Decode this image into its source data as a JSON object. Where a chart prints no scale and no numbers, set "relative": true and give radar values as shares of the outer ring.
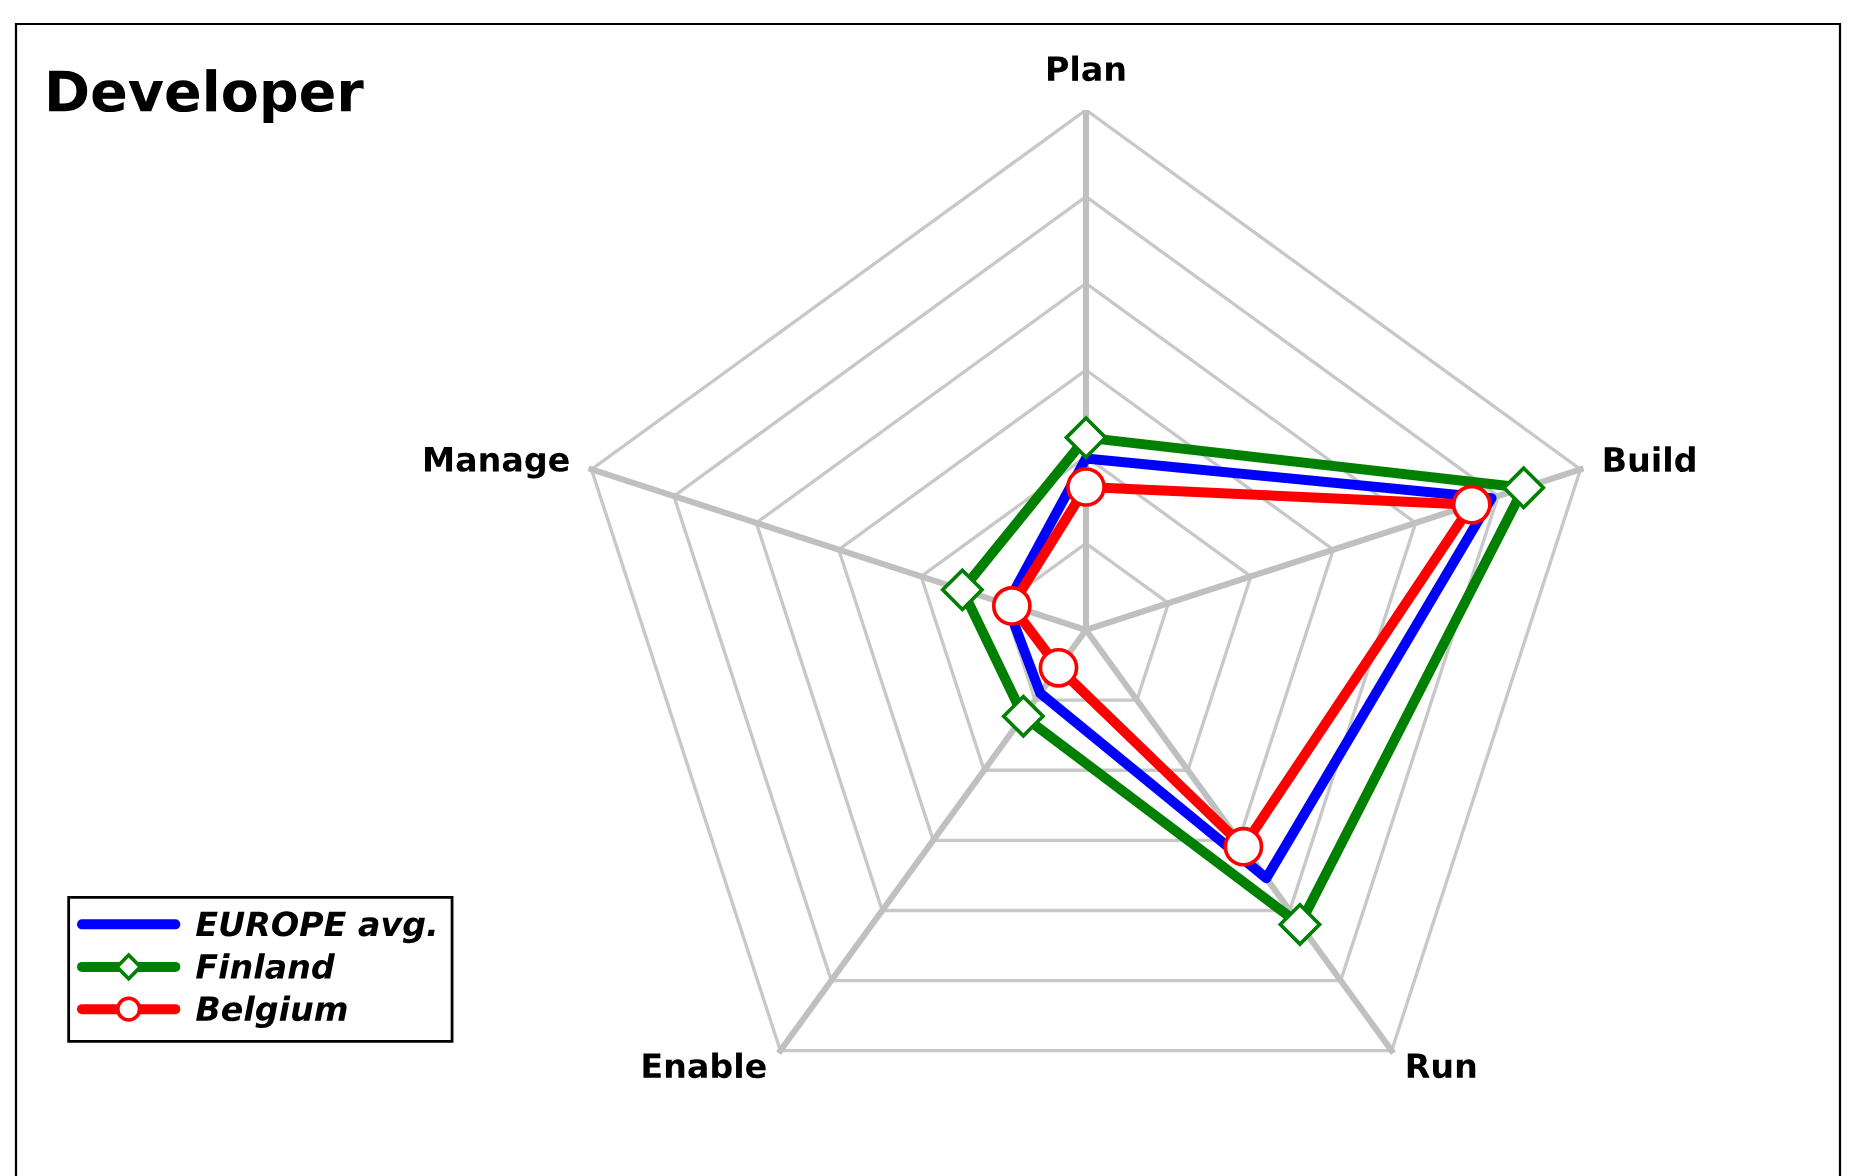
{
  "chart_data": {
    "type": "radar",
    "title": "Developer",
    "categories": [
      "Plan",
      "Build",
      "Run",
      "Enable",
      "Manage"
    ],
    "relative": true,
    "grid": true,
    "legend": "bottom left",
    "series": [
      {
        "name": "EUROPE avg.",
        "color": "#0000ff",
        "marker": "none",
        "values": [
          0.33,
          0.82,
          0.59,
          0.15,
          0.16
        ]
      },
      {
        "name": "Finland",
        "color": "#008000",
        "marker": "diamond",
        "values": [
          0.37,
          0.885,
          0.7,
          0.205,
          0.25
        ]
      },
      {
        "name": "Belgium",
        "color": "#ff0000",
        "marker": "circle",
        "values": [
          0.275,
          0.78,
          0.515,
          0.09,
          0.15
        ]
      }
    ]
  }
}
